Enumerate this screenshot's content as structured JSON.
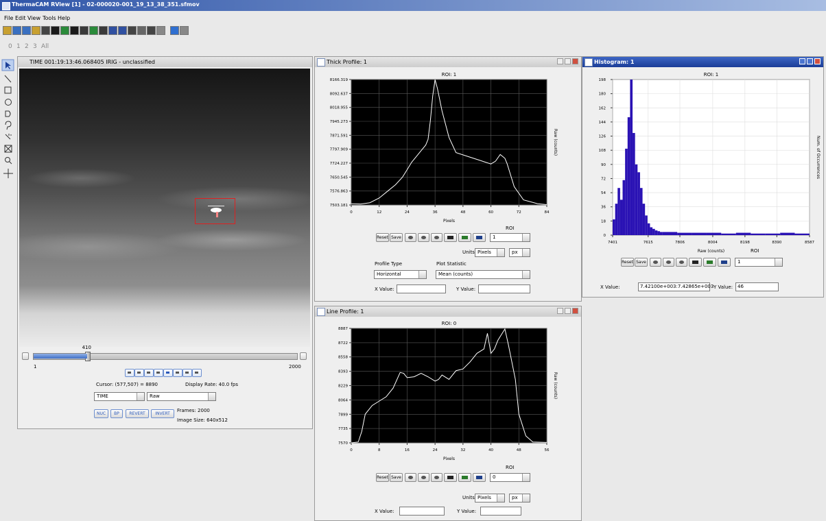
{
  "window": {
    "title": "ThermaCAM RView [1] - 02-000020-001_19_13_38_351.sfmov"
  },
  "menu": [
    "File",
    "Edit",
    "View",
    "Tools",
    "Help"
  ],
  "frame_tabs": [
    "0",
    "1",
    "2",
    "3",
    "All"
  ],
  "image_view": {
    "title": "TIME 001:19:13:46.068405 IRIG - unclassified",
    "slider": {
      "value": 410,
      "min": 1,
      "max": 2000
    },
    "cursor": "Cursor: (577,507) = 8890",
    "display_rate": "Display Rate: 40.0 fps",
    "time_mode": "TIME",
    "data_mode": "Raw",
    "buttons": [
      "NUC",
      "BP",
      "REVERT",
      "INVERT"
    ],
    "frames": "Frames: 2000",
    "image_size": "Image Size: 640x512"
  },
  "thick_profile": {
    "title": "Thick Profile: 1",
    "chart_data": {
      "type": "line",
      "title": "ROI: 1",
      "x_label": "Pixels",
      "y_label": "Raw (counts)",
      "color": "#ffffff",
      "background": "#000000",
      "grid": true,
      "xlim": [
        0,
        84
      ],
      "ylim": [
        7503.181,
        8166.319
      ],
      "xticks": [
        0,
        12,
        24,
        36,
        48,
        60,
        72,
        84
      ],
      "yticks": [
        8166.319,
        8092.637,
        8018.955,
        7945.273,
        7871.591,
        7797.909,
        7724.227,
        7650.545,
        7576.863,
        7503.181
      ],
      "x": [
        0,
        4,
        8,
        12,
        16,
        19,
        22,
        24,
        26,
        28,
        30,
        32,
        33,
        34,
        35,
        36,
        37,
        39,
        42,
        45,
        50,
        55,
        60,
        62,
        64,
        66,
        67,
        70,
        74,
        80,
        84
      ],
      "values": [
        7510,
        7508,
        7515,
        7540,
        7580,
        7610,
        7650,
        7690,
        7730,
        7760,
        7790,
        7820,
        7850,
        7950,
        8080,
        8166,
        8120,
        8000,
        7860,
        7780,
        7760,
        7740,
        7720,
        7735,
        7770,
        7750,
        7720,
        7600,
        7530,
        7510,
        7505
      ]
    },
    "buttons": [
      "Reset",
      "Save"
    ],
    "roi_label": "ROI",
    "roi": "1",
    "units_label": "Units",
    "units": "Pixels",
    "unit_abbr": "px",
    "profile_type_label": "Profile Type",
    "profile_type": "Horizontal",
    "plot_statistic_label": "Plot Statistic",
    "plot_statistic": "Mean (counts)",
    "x_value_label": "X Value:",
    "y_value_label": "Y Value:"
  },
  "histogram": {
    "title": "Histogram: 1",
    "chart_data": {
      "type": "histogram",
      "title": "ROI: 1",
      "x_label": "Raw (counts)",
      "y_label": "Num. of Occurrences",
      "color": "#2a12b4",
      "background": "#ffffff",
      "grid": true,
      "xlim": [
        7401,
        8587
      ],
      "ylim": [
        0,
        198
      ],
      "xticks": [
        7401,
        7615,
        7806,
        8004,
        8198,
        8390,
        8587
      ],
      "yticks": [
        198,
        180,
        162,
        144,
        126,
        108,
        90,
        72,
        54,
        36,
        18,
        0
      ],
      "bins": [
        7401,
        7416,
        7431,
        7446,
        7461,
        7476,
        7491,
        7506,
        7521,
        7536,
        7551,
        7566,
        7581,
        7596,
        7611,
        7626,
        7641,
        7656,
        7671,
        7686,
        7701,
        7790,
        7878,
        7967,
        8055,
        8144,
        8233,
        8321,
        8410,
        8498,
        8587
      ],
      "values": [
        20,
        40,
        60,
        45,
        70,
        110,
        150,
        198,
        130,
        90,
        80,
        60,
        40,
        25,
        15,
        10,
        8,
        6,
        5,
        4,
        4,
        3,
        3,
        3,
        2,
        3,
        2,
        2,
        3,
        2
      ]
    },
    "buttons": [
      "Reset",
      "Save"
    ],
    "roi_label": "ROI",
    "roi": "1",
    "x_value_label": "X Value:",
    "x_value": "7.42100e+003:7.42865e+003",
    "y_value_label": "Y Value:",
    "y_value": "46"
  },
  "line_profile": {
    "title": "Line Profile: 1",
    "chart_data": {
      "type": "line",
      "title": "ROI: 0",
      "x_label": "Pixels",
      "y_label": "Raw (counts)",
      "color": "#ffffff",
      "background": "#000000",
      "grid": true,
      "xlim": [
        0,
        56
      ],
      "ylim": [
        7570,
        8887
      ],
      "xticks": [
        0,
        8,
        16,
        24,
        32,
        40,
        48,
        56
      ],
      "yticks": [
        8887,
        8722,
        8558,
        8393,
        8229,
        8064,
        7899,
        7735,
        7570
      ],
      "x": [
        0,
        2,
        3,
        4,
        6,
        8,
        10,
        12,
        14,
        15,
        16,
        18,
        20,
        22,
        24,
        25,
        26,
        28,
        30,
        32,
        34,
        36,
        38,
        39,
        40,
        41,
        42,
        44,
        45,
        47,
        48,
        50,
        52,
        56
      ],
      "values": [
        7570,
        7580,
        7700,
        7900,
        8000,
        8050,
        8100,
        8200,
        8380,
        8370,
        8320,
        8330,
        8370,
        8330,
        8280,
        8300,
        8350,
        8300,
        8400,
        8420,
        8500,
        8600,
        8650,
        8830,
        8600,
        8650,
        8750,
        8880,
        8700,
        8300,
        7900,
        7650,
        7580,
        7575
      ]
    },
    "buttons": [
      "Reset",
      "Save"
    ],
    "roi_label": "ROI",
    "roi": "0",
    "units_label": "Units",
    "units": "Pixels",
    "unit_abbr": "px",
    "x_value_label": "X Value:",
    "y_value_label": "Y Value:"
  }
}
